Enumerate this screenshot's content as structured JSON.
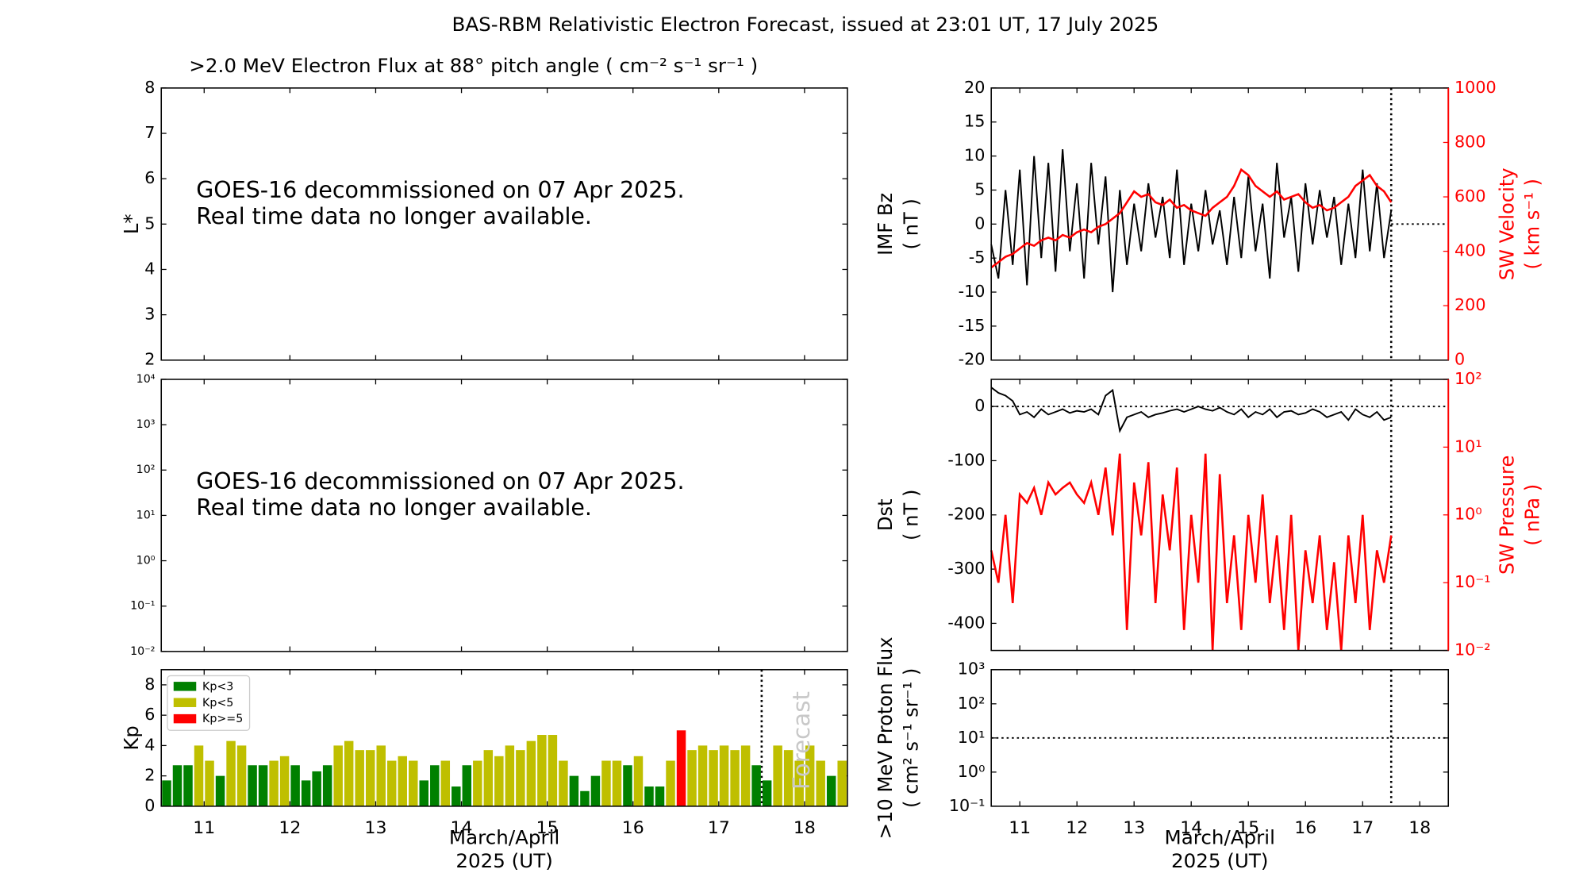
{
  "title": "BAS-RBM Relativistic Electron Forecast, issued at 23:01 UT, 17 July 2025",
  "chart_data": [
    {
      "type": "empty",
      "title": ">2.0 MeV Electron Flux at 88° pitch angle ( cm⁻² s⁻¹ sr⁻¹ )",
      "ylabel": [
        "L*"
      ],
      "xlim": [
        10.5,
        18.5
      ],
      "xticks": [
        11,
        12,
        13,
        14,
        15,
        16,
        17,
        18
      ],
      "xtick_labels": false,
      "ylim": [
        2,
        8
      ],
      "yticks": [
        2,
        3,
        4,
        5,
        6,
        7,
        8
      ],
      "annotation": [
        "GOES-16 decommissioned on 07 Apr 2025.",
        "Real time data no longer available."
      ]
    },
    {
      "type": "empty",
      "log_y": true,
      "xlim": [
        10.5,
        18.5
      ],
      "xticks": [
        11,
        12,
        13,
        14,
        15,
        16,
        17,
        18
      ],
      "xtick_labels": false,
      "ylim": [
        0.01,
        10000
      ],
      "yticks": [
        {
          "value": 0.01,
          "label": "10⁻²"
        },
        {
          "value": 0.1,
          "label": "10⁻¹"
        },
        {
          "value": 1,
          "label": "10⁰"
        },
        {
          "value": 10,
          "label": "10¹"
        },
        {
          "value": 100,
          "label": "10²"
        },
        {
          "value": 1000,
          "label": "10³"
        },
        {
          "value": 10000,
          "label": "10⁴"
        }
      ],
      "annotation": [
        "GOES-16 decommissioned on 07 Apr 2025.",
        "Real time data no longer available."
      ]
    },
    {
      "type": "bar",
      "ylabel": [
        "Kp"
      ],
      "xlabel": [
        "March/April",
        "2025 (UT)"
      ],
      "xlim": [
        10.5,
        18.5
      ],
      "xticks": [
        11,
        12,
        13,
        14,
        15,
        16,
        17,
        18
      ],
      "ylim": [
        0,
        9
      ],
      "yticks": [
        0,
        2,
        4,
        6,
        8
      ],
      "now": 17.5,
      "forecast_label": "Forecast",
      "legend_loc": "upper left",
      "legend": [
        {
          "name": "Kp<3",
          "color": "#008000"
        },
        {
          "name": "Kp<5",
          "color": "#bfbf00"
        },
        {
          "name": "Kp>=5",
          "color": "#ff0000"
        }
      ],
      "x": [
        10.5625,
        10.6875,
        10.8125,
        10.9375,
        11.0625,
        11.1875,
        11.3125,
        11.4375,
        11.5625,
        11.6875,
        11.8125,
        11.9375,
        12.0625,
        12.1875,
        12.3125,
        12.4375,
        12.5625,
        12.6875,
        12.8125,
        12.9375,
        13.0625,
        13.1875,
        13.3125,
        13.4375,
        13.5625,
        13.6875,
        13.8125,
        13.9375,
        14.0625,
        14.1875,
        14.3125,
        14.4375,
        14.5625,
        14.6875,
        14.8125,
        14.9375,
        15.0625,
        15.1875,
        15.3125,
        15.4375,
        15.5625,
        15.6875,
        15.8125,
        15.9375,
        16.0625,
        16.1875,
        16.3125,
        16.4375,
        16.5625,
        16.6875,
        16.8125,
        16.9375,
        17.0625,
        17.1875,
        17.3125,
        17.4375,
        17.5625,
        17.6875,
        17.8125,
        17.9375,
        18.0625,
        18.1875,
        18.3125,
        18.4375
      ],
      "values": [
        1.7,
        2.7,
        2.7,
        4.0,
        3.0,
        2.0,
        4.3,
        4.0,
        2.7,
        2.7,
        3.0,
        3.3,
        2.7,
        1.7,
        2.3,
        2.7,
        4.0,
        4.3,
        3.7,
        3.7,
        4.0,
        3.0,
        3.3,
        3.0,
        1.7,
        2.7,
        3.0,
        1.3,
        2.7,
        3.0,
        3.7,
        3.3,
        4.0,
        3.7,
        4.3,
        4.7,
        4.7,
        3.0,
        2.0,
        1.0,
        2.0,
        3.0,
        3.0,
        2.7,
        3.3,
        1.3,
        1.3,
        3.0,
        5.0,
        3.7,
        4.0,
        3.7,
        4.0,
        3.7,
        4.0,
        2.7,
        1.7,
        4.0,
        3.7,
        3.0,
        4.0,
        3.0,
        2.0,
        3.0
      ],
      "colors": [
        "#008000",
        "#008000",
        "#008000",
        "#bfbf00",
        "#bfbf00",
        "#008000",
        "#bfbf00",
        "#bfbf00",
        "#008000",
        "#008000",
        "#bfbf00",
        "#bfbf00",
        "#008000",
        "#008000",
        "#008000",
        "#008000",
        "#bfbf00",
        "#bfbf00",
        "#bfbf00",
        "#bfbf00",
        "#bfbf00",
        "#bfbf00",
        "#bfbf00",
        "#bfbf00",
        "#008000",
        "#008000",
        "#bfbf00",
        "#008000",
        "#008000",
        "#bfbf00",
        "#bfbf00",
        "#bfbf00",
        "#bfbf00",
        "#bfbf00",
        "#bfbf00",
        "#bfbf00",
        "#bfbf00",
        "#bfbf00",
        "#008000",
        "#008000",
        "#008000",
        "#bfbf00",
        "#bfbf00",
        "#008000",
        "#bfbf00",
        "#008000",
        "#008000",
        "#bfbf00",
        "#ff0000",
        "#bfbf00",
        "#bfbf00",
        "#bfbf00",
        "#bfbf00",
        "#bfbf00",
        "#bfbf00",
        "#008000",
        "#008000",
        "#bfbf00",
        "#bfbf00",
        "#bfbf00",
        "#bfbf00",
        "#bfbf00",
        "#008000",
        "#bfbf00"
      ]
    },
    {
      "type": "dual_line",
      "ylabel": [
        "IMF Bz",
        "( nT )"
      ],
      "y2label": [
        "SW Velocity",
        "( km s⁻¹ )"
      ],
      "xlim": [
        10.5,
        18.5
      ],
      "xticks": [
        11,
        12,
        13,
        14,
        15,
        16,
        17,
        18
      ],
      "xtick_labels": false,
      "ylim": [
        -20,
        20
      ],
      "yticks": [
        -20,
        -15,
        -10,
        -5,
        0,
        5,
        10,
        15,
        20
      ],
      "y2lim": [
        0,
        1000
      ],
      "y2ticks": [
        0,
        200,
        400,
        600,
        800,
        1000
      ],
      "now": 17.5,
      "hline": 0,
      "hline_after_now": true,
      "x": [
        10.5,
        10.625,
        10.75,
        10.875,
        11,
        11.125,
        11.25,
        11.375,
        11.5,
        11.625,
        11.75,
        11.875,
        12,
        12.125,
        12.25,
        12.375,
        12.5,
        12.625,
        12.75,
        12.875,
        13,
        13.125,
        13.25,
        13.375,
        13.5,
        13.625,
        13.75,
        13.875,
        14,
        14.125,
        14.25,
        14.375,
        14.5,
        14.625,
        14.75,
        14.875,
        15,
        15.125,
        15.25,
        15.375,
        15.5,
        15.625,
        15.75,
        15.875,
        16,
        16.125,
        16.25,
        16.375,
        16.5,
        16.625,
        16.75,
        16.875,
        17,
        17.125,
        17.25,
        17.375,
        17.5
      ],
      "series": [
        {
          "color": "#000000",
          "values": [
            -3,
            -8,
            5,
            -6,
            8,
            -9,
            10,
            -5,
            9,
            -7,
            11,
            -4,
            6,
            -8,
            9,
            -3,
            7,
            -10,
            5,
            -6,
            3,
            -4,
            6,
            -2,
            4,
            -5,
            8,
            -6,
            3,
            -4,
            5,
            -3,
            2,
            -6,
            4,
            -5,
            7,
            -4,
            3,
            -8,
            9,
            -2,
            4,
            -7,
            6,
            -3,
            5,
            -2,
            4,
            -6,
            3,
            -5,
            8,
            -4,
            6,
            -5,
            2
          ]
        },
        {
          "color": "#ff0000",
          "axis": "y2",
          "values": [
            340,
            360,
            380,
            390,
            410,
            430,
            420,
            440,
            450,
            440,
            460,
            450,
            470,
            480,
            470,
            490,
            500,
            520,
            540,
            580,
            620,
            600,
            610,
            580,
            570,
            590,
            560,
            570,
            550,
            540,
            530,
            560,
            580,
            600,
            640,
            700,
            680,
            640,
            620,
            600,
            620,
            590,
            600,
            610,
            580,
            560,
            570,
            550,
            560,
            580,
            600,
            640,
            660,
            680,
            640,
            620,
            580
          ]
        }
      ]
    },
    {
      "type": "dual_line",
      "ylabel": [
        "Dst",
        "( nT )"
      ],
      "y2label": [
        "SW Pressure",
        "( nPa )"
      ],
      "log_y2": true,
      "xlim": [
        10.5,
        18.5
      ],
      "xticks": [
        11,
        12,
        13,
        14,
        15,
        16,
        17,
        18
      ],
      "xtick_labels": false,
      "ylim": [
        -450,
        50
      ],
      "yticks": [
        -400,
        -300,
        -200,
        -100,
        0
      ],
      "y2lim": [
        0.01,
        100
      ],
      "y2ticks": [
        {
          "value": 0.01,
          "label": "10⁻²"
        },
        {
          "value": 0.1,
          "label": "10⁻¹"
        },
        {
          "value": 1,
          "label": "10⁰"
        },
        {
          "value": 10,
          "label": "10¹"
        },
        {
          "value": 100,
          "label": "10²"
        }
      ],
      "now": 17.5,
      "hline": 0,
      "x": [
        10.5,
        10.625,
        10.75,
        10.875,
        11,
        11.125,
        11.25,
        11.375,
        11.5,
        11.625,
        11.75,
        11.875,
        12,
        12.125,
        12.25,
        12.375,
        12.5,
        12.625,
        12.75,
        12.875,
        13,
        13.125,
        13.25,
        13.375,
        13.5,
        13.625,
        13.75,
        13.875,
        14,
        14.125,
        14.25,
        14.375,
        14.5,
        14.625,
        14.75,
        14.875,
        15,
        15.125,
        15.25,
        15.375,
        15.5,
        15.625,
        15.75,
        15.875,
        16,
        16.125,
        16.25,
        16.375,
        16.5,
        16.625,
        16.75,
        16.875,
        17,
        17.125,
        17.25,
        17.375,
        17.5
      ],
      "series": [
        {
          "color": "#000000",
          "values": [
            35,
            25,
            20,
            10,
            -15,
            -10,
            -20,
            -5,
            -15,
            -10,
            -5,
            -12,
            -8,
            -10,
            -5,
            -15,
            20,
            30,
            -45,
            -20,
            -15,
            -10,
            -20,
            -15,
            -12,
            -8,
            -5,
            -10,
            -5,
            0,
            -5,
            -8,
            -2,
            -10,
            -15,
            -5,
            -20,
            -10,
            -15,
            -5,
            -20,
            -10,
            -8,
            -15,
            -12,
            -5,
            -10,
            -20,
            -15,
            -10,
            -25,
            -5,
            -15,
            -20,
            -10,
            -25,
            -20
          ]
        },
        {
          "color": "#ff0000",
          "axis": "y2",
          "values": [
            0.3,
            0.1,
            1,
            0.05,
            2,
            1.5,
            2.5,
            1,
            3,
            2,
            2.5,
            3,
            2,
            1.5,
            3,
            1,
            5,
            0.5,
            8,
            0.02,
            3,
            0.5,
            6,
            0.05,
            2,
            0.3,
            5,
            0.02,
            1,
            0.1,
            8,
            0.01,
            4,
            0.05,
            0.5,
            0.02,
            1,
            0.1,
            2,
            0.05,
            0.5,
            0.02,
            1,
            0.01,
            0.3,
            0.05,
            0.5,
            0.02,
            0.2,
            0.01,
            0.5,
            0.05,
            1,
            0.02,
            0.3,
            0.1,
            0.5
          ]
        }
      ]
    },
    {
      "type": "empty",
      "log_y": true,
      "ylabel": [
        ">10 MeV Proton Flux",
        "( cm² s⁻¹ sr⁻¹ )"
      ],
      "xlabel": [
        "March/April",
        "2025 (UT)"
      ],
      "xlim": [
        10.5,
        18.5
      ],
      "xticks": [
        11,
        12,
        13,
        14,
        15,
        16,
        17,
        18
      ],
      "ylim": [
        0.1,
        1000
      ],
      "yticks": [
        {
          "value": 0.1,
          "label": "10⁻¹"
        },
        {
          "value": 1,
          "label": "10⁰"
        },
        {
          "value": 10,
          "label": "10¹"
        },
        {
          "value": 100,
          "label": "10²"
        },
        {
          "value": 1000,
          "label": "10³"
        }
      ],
      "now": 17.5,
      "hline": 10
    }
  ]
}
